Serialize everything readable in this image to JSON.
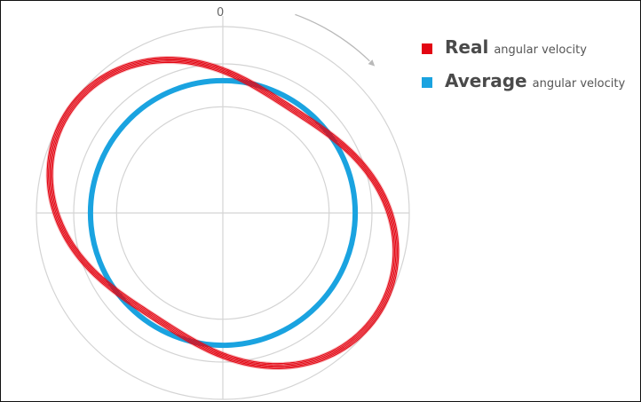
{
  "chart_data": {
    "type": "polar-line",
    "angle_tick_labels": [
      "0"
    ],
    "rotation_direction": "clockwise",
    "legend_placement": "top-right",
    "radial_scale": [
      0,
      1.0
    ],
    "series": [
      {
        "legend_bold": "Real",
        "legend_rest": "angular velocity",
        "color": "#e30613",
        "description_values": {
          "mean_radius": 0.83,
          "amplitude": 0.16,
          "cycles_per_revolution": 2,
          "peak_angles_deg": [
            123,
            303
          ]
        }
      },
      {
        "legend_bold": "Average",
        "legend_rest": "angular velocity",
        "color": "#1aa3e0",
        "description_values": {
          "radius": 0.71
        }
      }
    ]
  }
}
